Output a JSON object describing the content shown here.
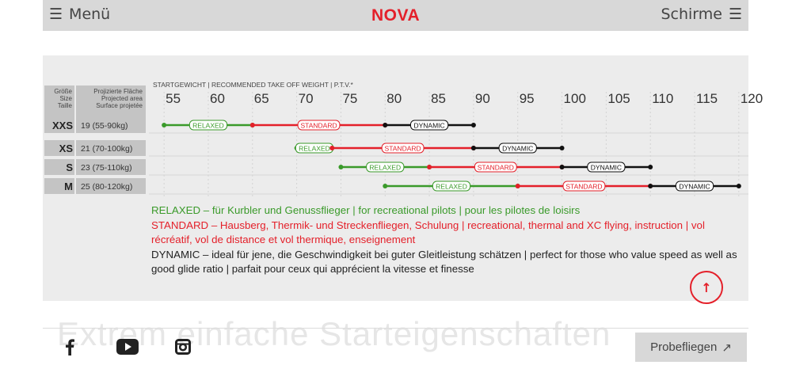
{
  "topbar": {
    "menu_label": "Menü",
    "logo": "NOVA",
    "schirme_label": "Schirme"
  },
  "panel": {
    "weight_header": "STARTGEWICHT | RECOMMENDED TAKE OFF WEIGHT | P.T.V.*",
    "size_header": [
      "Größe",
      "Size",
      "Taille"
    ],
    "area_header": [
      "Projizierte Fläche",
      "Projected area",
      "Surface projetée"
    ]
  },
  "chart_data": {
    "type": "range-bar",
    "x_ticks": [
      55,
      60,
      65,
      70,
      75,
      80,
      85,
      90,
      95,
      100,
      105,
      110,
      115,
      120
    ],
    "xlim": [
      54,
      121
    ],
    "segment_labels": [
      "RELAXED",
      "STANDARD",
      "DYNAMIC"
    ],
    "colors": {
      "RELAXED": "#3a9a2a",
      "STANDARD": "#e4202a",
      "DYNAMIC": "#111111"
    },
    "rows": [
      {
        "size": "XXS",
        "area": "19 (55-90kg)",
        "relaxed": [
          55,
          65
        ],
        "standard": [
          65,
          80
        ],
        "dynamic": [
          80,
          90
        ]
      },
      {
        "size": "XS",
        "area": "21 (70-100kg)",
        "relaxed": [
          70,
          74
        ],
        "standard": [
          74,
          90
        ],
        "dynamic": [
          90,
          100
        ]
      },
      {
        "size": "S",
        "area": "23 (75-110kg)",
        "relaxed": [
          75,
          85
        ],
        "standard": [
          85,
          100
        ],
        "dynamic": [
          100,
          110
        ]
      },
      {
        "size": "M",
        "area": "25 (80-120kg)",
        "relaxed": [
          80,
          95
        ],
        "standard": [
          95,
          110
        ],
        "dynamic": [
          110,
          120
        ]
      }
    ]
  },
  "legend": {
    "relaxed": "RELAXED – für Kurbler und Genussflieger | for recreational pilots | pour les pilotes de loisirs",
    "standard": "STANDARD – Hausberg, Thermik- und Streckenfliegen, Schulung | recreational, thermal and XC flying, instruction | vol récréatif, vol de distance et vol thermique, enseignement",
    "dynamic": "DYNAMIC – ideal für jene, die Geschwindigkeit bei guter Gleitleistung schätzen | perfect for those who value speed as well as good glide ratio | parfait pour ceux qui apprécient la vitesse et finesse"
  },
  "headline": "Extrem einfache Starteigenschaften",
  "footer": {
    "social": [
      "facebook-icon",
      "youtube-icon",
      "instagram-icon"
    ],
    "probe_label": "Probefliegen"
  }
}
